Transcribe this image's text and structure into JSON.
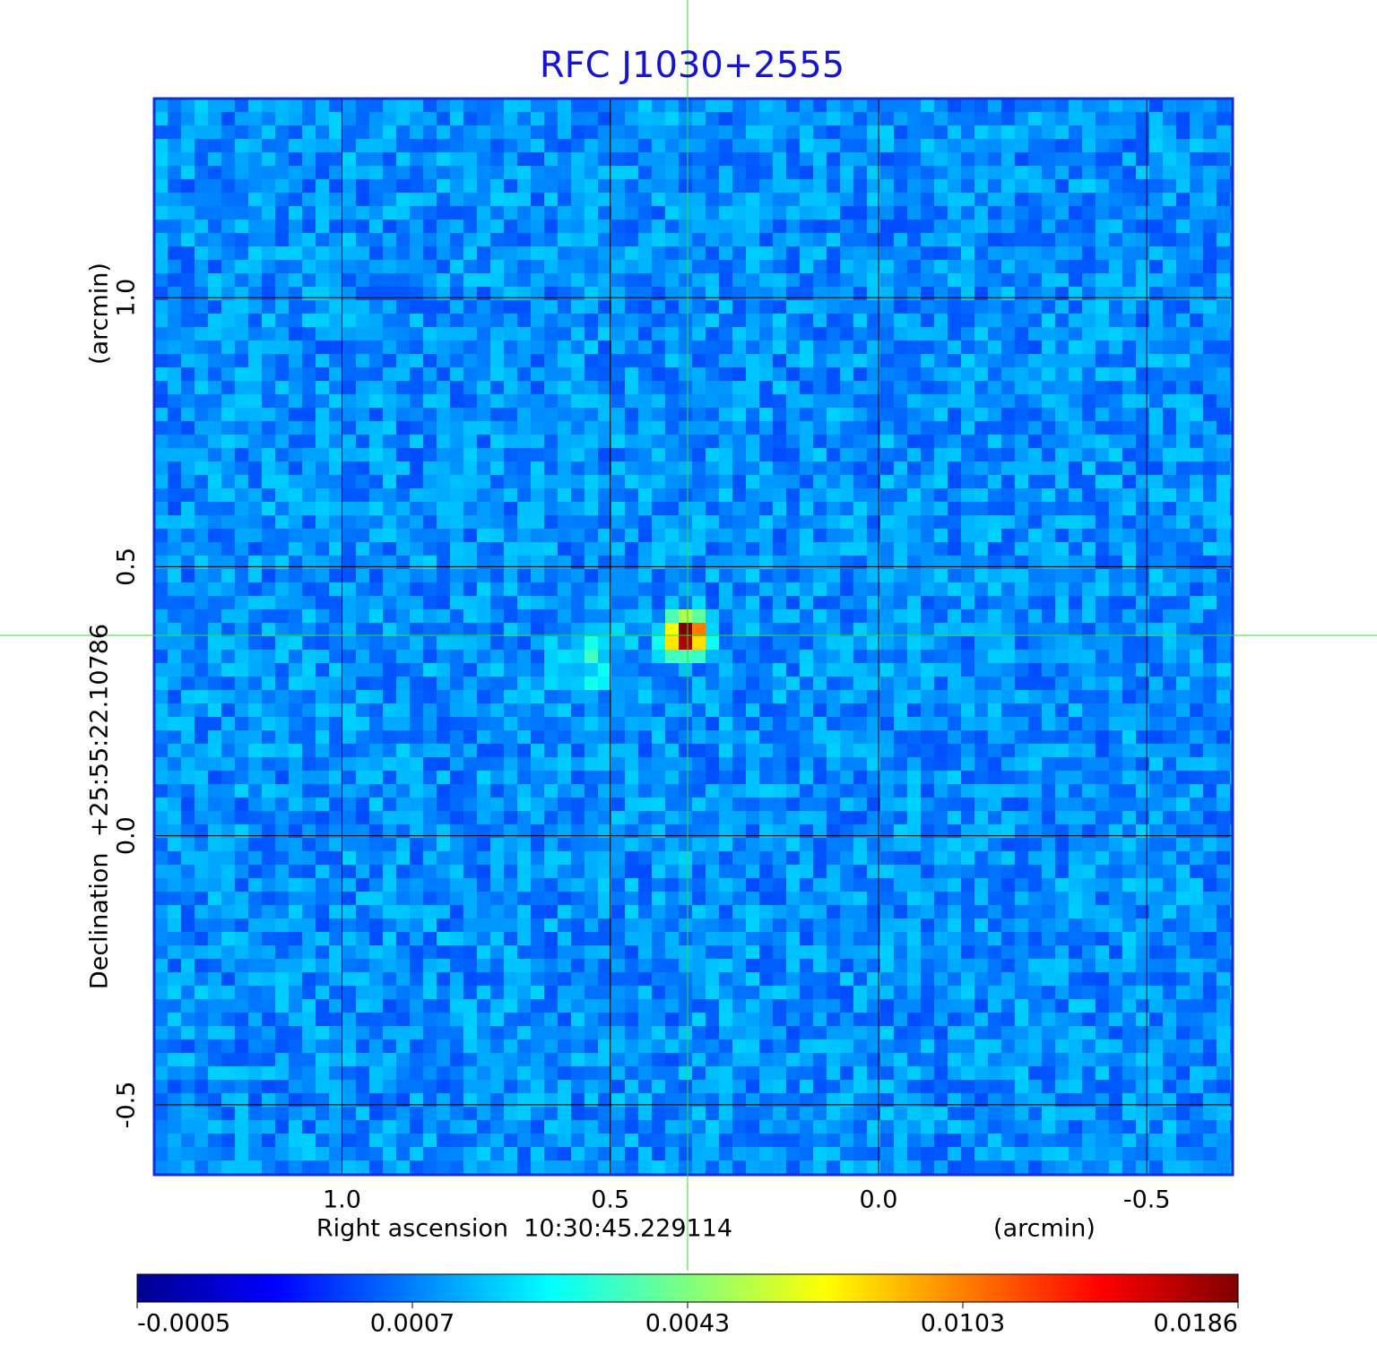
{
  "chart_data": {
    "type": "image",
    "title": "RFC J1030+2555",
    "x_label": "Right ascension  10:30:45.229114",
    "x_unit": "(arcmin)",
    "y_label": "Declination  +25:55:22.10786",
    "y_unit": "(arcmin)",
    "xlim": [
      1.35,
      -0.66
    ],
    "ylim": [
      -0.63,
      1.37
    ],
    "xticks": [
      {
        "value": 1,
        "label": "1.0"
      },
      {
        "value": 0.5,
        "label": "0.5"
      },
      {
        "value": 0,
        "label": "0.0"
      },
      -0.5
    ],
    "yticks": [
      {
        "value": 1,
        "label": "1.0"
      },
      {
        "value": 0.5,
        "label": "0.5"
      },
      {
        "value": 0,
        "label": "0.0"
      },
      -0.5
    ],
    "grid": true,
    "colorbar": {
      "ticks": [
        -0.0005,
        0.0007,
        0.0043,
        0.0103,
        0.0186
      ]
    }
  }
}
